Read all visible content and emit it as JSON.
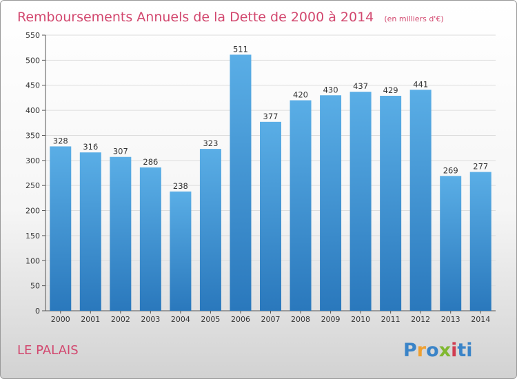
{
  "chart_data": {
    "type": "bar",
    "title": "Remboursements Annuels de la Dette de 2000 à 2014",
    "unit": "(en milliers d'€)",
    "categories": [
      "2000",
      "2001",
      "2002",
      "2003",
      "2004",
      "2005",
      "2006",
      "2007",
      "2008",
      "2009",
      "2010",
      "2011",
      "2012",
      "2013",
      "2014"
    ],
    "values": [
      328,
      316,
      307,
      286,
      238,
      323,
      511,
      377,
      420,
      430,
      437,
      429,
      441,
      269,
      277
    ],
    "ylim": [
      0,
      550
    ],
    "yticks": [
      0,
      50,
      100,
      150,
      200,
      250,
      300,
      350,
      400,
      450,
      500,
      550
    ],
    "grid": true,
    "xlabel": "",
    "ylabel": ""
  },
  "footer": {
    "commune": "LE PALAIS",
    "logo_letters": [
      "P",
      "r",
      "o",
      "x",
      "i",
      "t",
      "i"
    ]
  },
  "colors": {
    "title": "#d2476e",
    "bar_top": "#5aaee6",
    "bar_bottom": "#2a78bc",
    "logo": [
      "#3a84c8",
      "#f0a030",
      "#3a84c8",
      "#80b830",
      "#d03c50",
      "#3a84c8",
      "#3a84c8"
    ]
  }
}
